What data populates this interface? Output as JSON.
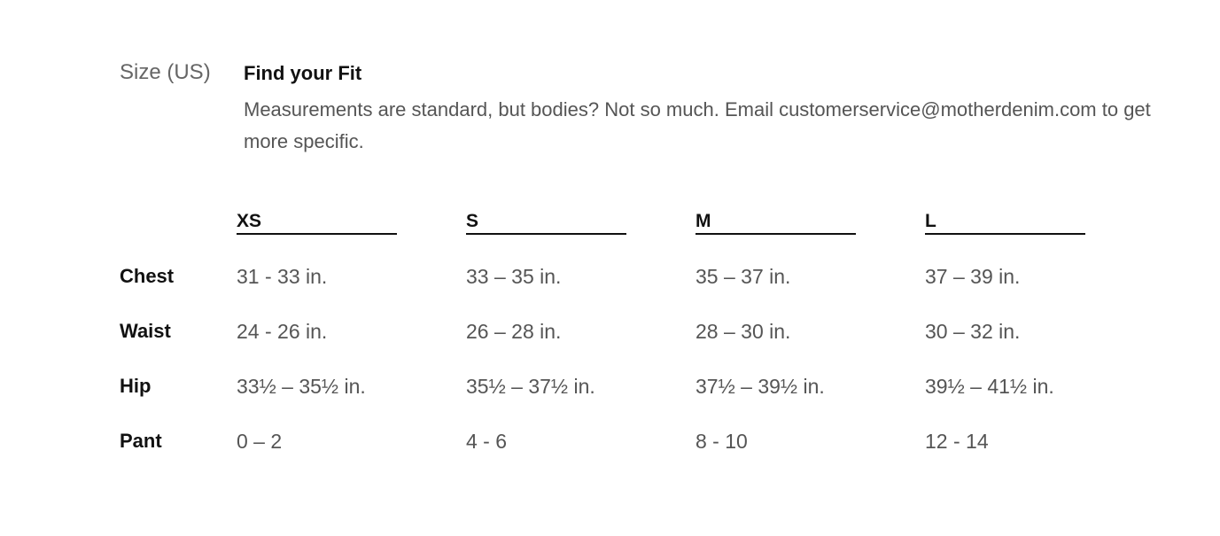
{
  "header": {
    "size_label": "Size (US)",
    "title": "Find your Fit",
    "description": "Measurements are standard, but bodies? Not so much. Email customerservice@motherdenim.com to get more specific."
  },
  "table": {
    "columns": [
      "XS",
      "S",
      "M",
      "L"
    ],
    "rows": [
      {
        "label": "Chest",
        "values": [
          "31 - 33 in.",
          "33 – 35 in.",
          "35 – 37 in.",
          "37 – 39 in."
        ]
      },
      {
        "label": "Waist",
        "values": [
          "24 - 26 in.",
          "26 – 28 in.",
          "28 – 30 in.",
          "30 – 32 in."
        ]
      },
      {
        "label": "Hip",
        "values": [
          "33½ – 35½ in.",
          "35½ – 37½ in.",
          "37½ – 39½ in.",
          "39½ – 41½ in."
        ]
      },
      {
        "label": "Pant",
        "values": [
          "0 – 2",
          "4 - 6",
          "8 - 10",
          "12 - 14"
        ]
      }
    ]
  }
}
